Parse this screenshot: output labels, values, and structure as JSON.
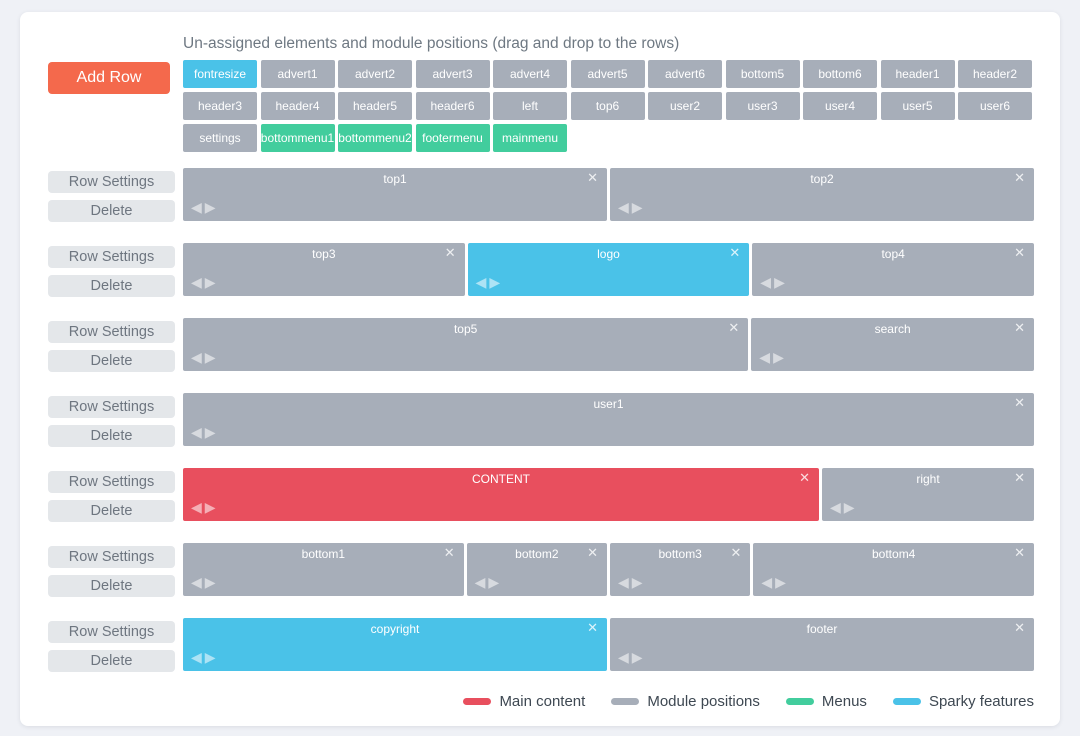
{
  "title": "Un-assigned elements and module positions (drag and drop to the rows)",
  "buttons": {
    "add_row": "Add Row",
    "row_settings": "Row Settings",
    "delete": "Delete"
  },
  "icons": {
    "close": "✕",
    "left_arrow": "◀",
    "right_arrow": "▶"
  },
  "colors": {
    "main": "#e84f5e",
    "module": "#a7aeb9",
    "menu": "#42cd9d",
    "sparky": "#4ac2e8",
    "accent_orange": "#f4694c"
  },
  "chips": [
    {
      "label": "fontresize",
      "type": "sparky"
    },
    {
      "label": "advert1",
      "type": "module"
    },
    {
      "label": "advert2",
      "type": "module"
    },
    {
      "label": "advert3",
      "type": "module"
    },
    {
      "label": "advert4",
      "type": "module"
    },
    {
      "label": "advert5",
      "type": "module"
    },
    {
      "label": "advert6",
      "type": "module"
    },
    {
      "label": "bottom5",
      "type": "module"
    },
    {
      "label": "bottom6",
      "type": "module"
    },
    {
      "label": "header1",
      "type": "module"
    },
    {
      "label": "header2",
      "type": "module"
    },
    {
      "label": "header3",
      "type": "module"
    },
    {
      "label": "header4",
      "type": "module"
    },
    {
      "label": "header5",
      "type": "module"
    },
    {
      "label": "header6",
      "type": "module"
    },
    {
      "label": "left",
      "type": "module"
    },
    {
      "label": "top6",
      "type": "module"
    },
    {
      "label": "user2",
      "type": "module"
    },
    {
      "label": "user3",
      "type": "module"
    },
    {
      "label": "user4",
      "type": "module"
    },
    {
      "label": "user5",
      "type": "module"
    },
    {
      "label": "user6",
      "type": "module"
    },
    {
      "label": "settings",
      "type": "module"
    },
    {
      "label": "bottommenu1",
      "type": "menu"
    },
    {
      "label": "bottommenu2",
      "type": "menu"
    },
    {
      "label": "footermenu",
      "type": "menu"
    },
    {
      "label": "mainmenu",
      "type": "menu"
    }
  ],
  "rows": [
    {
      "modules": [
        {
          "label": "top1",
          "type": "module",
          "width": 50
        },
        {
          "label": "top2",
          "type": "module",
          "width": 50
        }
      ]
    },
    {
      "modules": [
        {
          "label": "top3",
          "type": "module",
          "width": 33.33
        },
        {
          "label": "logo",
          "type": "sparky",
          "width": 33.33
        },
        {
          "label": "top4",
          "type": "module",
          "width": 33.34
        }
      ]
    },
    {
      "modules": [
        {
          "label": "top5",
          "type": "module",
          "width": 66.66
        },
        {
          "label": "search",
          "type": "module",
          "width": 33.34
        }
      ]
    },
    {
      "modules": [
        {
          "label": "user1",
          "type": "module",
          "width": 100
        }
      ]
    },
    {
      "modules": [
        {
          "label": "CONTENT",
          "type": "main",
          "width": 75
        },
        {
          "label": "right",
          "type": "module",
          "width": 25
        }
      ]
    },
    {
      "modules": [
        {
          "label": "bottom1",
          "type": "module",
          "width": 33.33
        },
        {
          "label": "bottom2",
          "type": "module",
          "width": 16.67
        },
        {
          "label": "bottom3",
          "type": "module",
          "width": 16.67
        },
        {
          "label": "bottom4",
          "type": "module",
          "width": 33.33
        }
      ]
    },
    {
      "modules": [
        {
          "label": "copyright",
          "type": "sparky",
          "width": 50
        },
        {
          "label": "footer",
          "type": "module",
          "width": 50
        }
      ]
    }
  ],
  "legend": [
    {
      "label": "Main content",
      "type": "main"
    },
    {
      "label": "Module positions",
      "type": "module"
    },
    {
      "label": "Menus",
      "type": "menu"
    },
    {
      "label": "Sparky features",
      "type": "sparky"
    }
  ]
}
